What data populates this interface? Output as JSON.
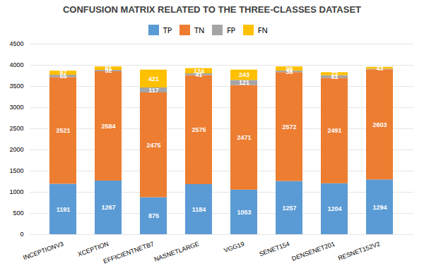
{
  "chart_data": {
    "type": "bar",
    "title": "CONFUSION MATRIX RELATED TO THE THREE-CLASSES DATASET",
    "categories": [
      "INCEPTIONV3",
      "XCEPTION",
      "EFFICIENTNETB7",
      "NASNETLARGE",
      "VGG19",
      "SENET154",
      "DENSENET201",
      "RESNET152V2"
    ],
    "series": [
      {
        "name": "TP",
        "color": "#5b9bd5",
        "values": [
          1191,
          1267,
          875,
          1184,
          1053,
          1257,
          1204,
          1294
        ]
      },
      {
        "name": "TN",
        "color": "#ed7d31",
        "values": [
          2521,
          2584,
          2475,
          2575,
          2471,
          2572,
          2491,
          2603
        ]
      },
      {
        "name": "FP",
        "color": "#a5a5a5",
        "values": [
          55,
          32,
          117,
          41,
          121,
          36,
          61,
          13
        ],
        "value_labels": [
          "55",
          "32",
          "117",
          "41",
          "121",
          "36",
          "61",
          null
        ]
      },
      {
        "name": "FN",
        "color": "#ffc000",
        "values": [
          97,
          81,
          421,
          124,
          243,
          99,
          72,
          43
        ]
      }
    ],
    "ylim": [
      0,
      4500
    ],
    "yticks": [
      0,
      500,
      1000,
      1500,
      2000,
      2500,
      3000,
      3500,
      4000,
      4500
    ],
    "grid": true,
    "stacked": true,
    "legend": "top",
    "data_labels": true
  }
}
